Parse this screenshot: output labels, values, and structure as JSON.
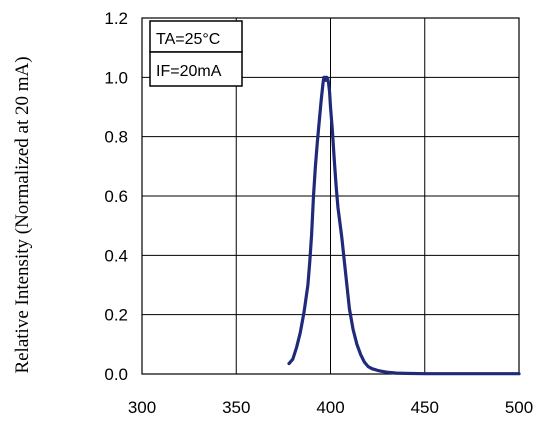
{
  "chart_data": {
    "type": "line",
    "title": "",
    "xlabel": "",
    "ylabel": "Relative Intensity (Normalized at 20 mA)",
    "xlim": [
      300,
      500
    ],
    "ylim": [
      0.0,
      1.2
    ],
    "xticks": [
      300,
      350,
      400,
      450,
      500
    ],
    "yticks": [
      "0.0",
      "0.2",
      "0.4",
      "0.6",
      "0.8",
      "1.0",
      "1.2"
    ],
    "grid": true,
    "annotations": [
      "TA=25°C",
      "IF=20mA"
    ],
    "line_color": "#1f2a7a",
    "series": [
      {
        "x": [
          378,
          380,
          382,
          384,
          386,
          388,
          389,
          390,
          391,
          392,
          393,
          394,
          395,
          396,
          396.5,
          397,
          397.5,
          398,
          398.5,
          399,
          399.5,
          400,
          401,
          402,
          403,
          404,
          405,
          406,
          407,
          408,
          409,
          410,
          412,
          414,
          416,
          418,
          420,
          422,
          425,
          428,
          430,
          435,
          440,
          450,
          460,
          470,
          480,
          490,
          500
        ],
        "y": [
          0.035,
          0.05,
          0.09,
          0.14,
          0.21,
          0.3,
          0.38,
          0.47,
          0.6,
          0.7,
          0.78,
          0.85,
          0.92,
          0.98,
          1.0,
          1.0,
          0.99,
          1.0,
          0.995,
          0.98,
          0.95,
          0.9,
          0.82,
          0.72,
          0.63,
          0.56,
          0.51,
          0.46,
          0.4,
          0.34,
          0.28,
          0.22,
          0.15,
          0.1,
          0.065,
          0.04,
          0.025,
          0.018,
          0.012,
          0.008,
          0.006,
          0.003,
          0.002,
          0.001,
          0.001,
          0.001,
          0.001,
          0.001,
          0.001
        ]
      }
    ]
  }
}
